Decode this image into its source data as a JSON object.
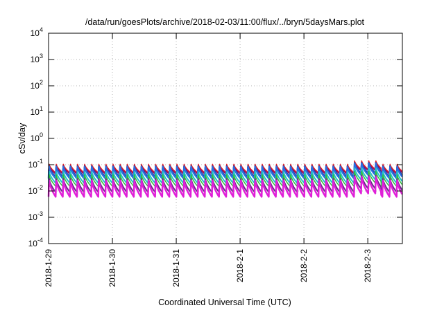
{
  "chart_data": {
    "type": "line",
    "title": "/data/run/goesPlots/archive/2018-02-03/11:00/flux/../bryn/5daysMars.plot",
    "xlabel": "Coordinated Universal Time (UTC)",
    "ylabel": "cSv/day",
    "yscale": "log",
    "ylim": [
      0.0001,
      10000
    ],
    "xlim": [
      "2018-01-29",
      "2018-02-03T13:00"
    ],
    "grid": true,
    "legend": "none",
    "y_ticks": [
      {
        "base": "10",
        "exp": "-4",
        "value": 0.0001
      },
      {
        "base": "10",
        "exp": "-3",
        "value": 0.001
      },
      {
        "base": "10",
        "exp": "-2",
        "value": 0.01
      },
      {
        "base": "10",
        "exp": "-1",
        "value": 0.1
      },
      {
        "base": "10",
        "exp": "0",
        "value": 1
      },
      {
        "base": "10",
        "exp": "1",
        "value": 10
      },
      {
        "base": "10",
        "exp": "2",
        "value": 100
      },
      {
        "base": "10",
        "exp": "3",
        "value": 1000
      },
      {
        "base": "10",
        "exp": "4",
        "value": 10000
      }
    ],
    "x_ticks": [
      "2018-1-29",
      "2018-1-30",
      "2018-1-31",
      "2018-2-1",
      "2018-2-2",
      "2018-2-3"
    ],
    "x_tick_dates": [
      "2018-01-29",
      "2018-01-30",
      "2018-01-31",
      "2018-02-01",
      "2018-02-02",
      "2018-02-03"
    ],
    "oscillation_period_hours": 2.67,
    "series": [
      {
        "color": "#8b0a6b",
        "peak": 0.1,
        "trough": 0.045,
        "width": 2
      },
      {
        "color": "#e0202c",
        "peak": 0.11,
        "trough": 0.05,
        "width": 1.5
      },
      {
        "color": "#1f3c9c",
        "peak": 0.095,
        "trough": 0.035,
        "width": 2
      },
      {
        "color": "#2a6de0",
        "peak": 0.09,
        "trough": 0.03,
        "width": 2.5
      },
      {
        "color": "#22c2c8",
        "peak": 0.06,
        "trough": 0.02,
        "width": 2
      },
      {
        "color": "#2fbf3a",
        "peak": 0.045,
        "trough": 0.015,
        "width": 1.5
      },
      {
        "color": "#6a2a8a",
        "peak": 0.032,
        "trough": 0.009,
        "width": 2
      },
      {
        "color": "#e020d8",
        "peak": 0.028,
        "trough": 0.006,
        "width": 2.5
      }
    ]
  }
}
